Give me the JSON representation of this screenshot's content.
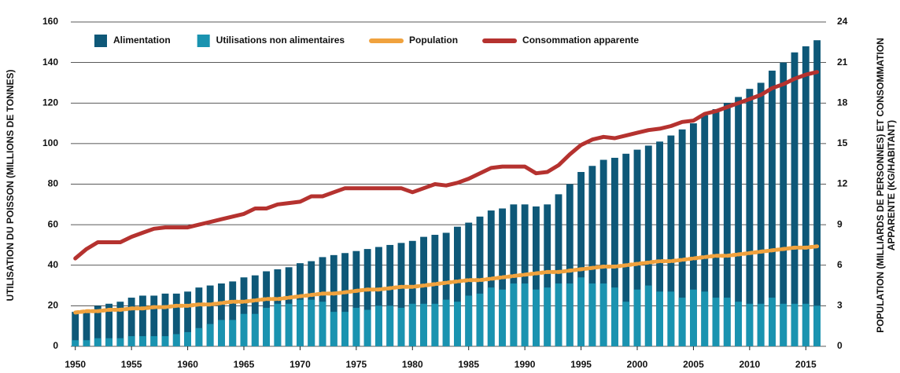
{
  "chart_data": {
    "type": "bar",
    "ylabel": "UTILISATION DU POISSON (MILLIONS DE TONNES)",
    "y2label": [
      "POPULATION (MILLIARDS DE PERSONNES) ET CONSOMMATION",
      "APPARENTE (KG/HABITANT)"
    ],
    "x": [
      1950,
      1951,
      1952,
      1953,
      1954,
      1955,
      1956,
      1957,
      1958,
      1959,
      1960,
      1961,
      1962,
      1963,
      1964,
      1965,
      1966,
      1967,
      1968,
      1969,
      1970,
      1971,
      1972,
      1973,
      1974,
      1975,
      1976,
      1977,
      1978,
      1979,
      1980,
      1981,
      1982,
      1983,
      1984,
      1985,
      1986,
      1987,
      1988,
      1989,
      1990,
      1991,
      1992,
      1993,
      1994,
      1995,
      1996,
      1997,
      1998,
      1999,
      2000,
      2001,
      2002,
      2003,
      2004,
      2005,
      2006,
      2007,
      2008,
      2009,
      2010,
      2011,
      2012,
      2013,
      2014,
      2015,
      2016
    ],
    "xlim": [
      1949.6,
      2016.8
    ],
    "xticks": [
      1950,
      1955,
      1960,
      1965,
      1970,
      1975,
      1980,
      1985,
      1990,
      1995,
      2000,
      2005,
      2010,
      2015
    ],
    "ylim": [
      0,
      160
    ],
    "yticks": [
      0,
      20,
      40,
      60,
      80,
      100,
      120,
      140,
      160
    ],
    "y2lim": [
      0,
      24
    ],
    "y2ticks": [
      0,
      3,
      6,
      9,
      12,
      15,
      18,
      21,
      24
    ],
    "grid": true,
    "legend": "top",
    "series": [
      {
        "name": "Alimentation",
        "type": "bar",
        "color": "#0e5878",
        "values": [
          17,
          18,
          20,
          21,
          22,
          24,
          25,
          25,
          26,
          26,
          27,
          29,
          30,
          31,
          32,
          34,
          35,
          37,
          38,
          39,
          41,
          42,
          44,
          45,
          46,
          47,
          48,
          49,
          50,
          51,
          52,
          54,
          55,
          56,
          59,
          61,
          64,
          67,
          68,
          70,
          70,
          69,
          70,
          75,
          80,
          86,
          89,
          92,
          93,
          95,
          97,
          99,
          101,
          104,
          107,
          110,
          114,
          117,
          120,
          123,
          127,
          130,
          136,
          140,
          145,
          148,
          151
        ]
      },
      {
        "name": "Utilisations non alimentaires",
        "type": "bar",
        "color": "#1a93b0",
        "values": [
          3,
          3,
          4,
          4,
          4,
          5,
          5,
          5,
          5,
          6,
          7,
          9,
          11,
          13,
          13,
          16,
          16,
          19,
          21,
          21,
          23,
          23,
          22,
          17,
          17,
          19,
          18,
          20,
          20,
          19,
          21,
          21,
          21,
          23,
          22,
          25,
          26,
          29,
          28,
          31,
          31,
          28,
          29,
          31,
          31,
          34,
          31,
          31,
          29,
          22,
          28,
          30,
          27,
          27,
          24,
          28,
          27,
          24,
          24,
          22,
          21,
          21,
          24,
          21,
          21,
          21,
          20
        ]
      },
      {
        "name": "Population",
        "type": "line",
        "axis": "y2",
        "color": "#f0a23e",
        "values": [
          2.5,
          2.6,
          2.6,
          2.7,
          2.7,
          2.8,
          2.8,
          2.9,
          2.9,
          3.0,
          3.0,
          3.1,
          3.1,
          3.2,
          3.3,
          3.3,
          3.4,
          3.5,
          3.5,
          3.6,
          3.7,
          3.8,
          3.9,
          3.9,
          4.0,
          4.1,
          4.2,
          4.2,
          4.3,
          4.4,
          4.4,
          4.5,
          4.6,
          4.7,
          4.8,
          4.9,
          4.9,
          5.0,
          5.1,
          5.2,
          5.3,
          5.4,
          5.5,
          5.5,
          5.6,
          5.7,
          5.8,
          5.9,
          5.9,
          6.0,
          6.1,
          6.2,
          6.3,
          6.3,
          6.4,
          6.5,
          6.6,
          6.7,
          6.7,
          6.8,
          6.9,
          7.0,
          7.1,
          7.2,
          7.3,
          7.3,
          7.4
        ]
      },
      {
        "name": "Consommation apparente",
        "type": "line",
        "axis": "y2",
        "color": "#b5322f",
        "values": [
          6.5,
          7.2,
          7.7,
          7.7,
          7.7,
          8.1,
          8.4,
          8.7,
          8.8,
          8.8,
          8.8,
          9.0,
          9.2,
          9.4,
          9.6,
          9.8,
          10.2,
          10.2,
          10.5,
          10.6,
          10.7,
          11.1,
          11.1,
          11.4,
          11.7,
          11.7,
          11.7,
          11.7,
          11.7,
          11.7,
          11.4,
          11.7,
          12.0,
          11.9,
          12.1,
          12.4,
          12.8,
          13.2,
          13.3,
          13.3,
          13.3,
          12.8,
          12.9,
          13.4,
          14.2,
          14.9,
          15.3,
          15.5,
          15.4,
          15.6,
          15.8,
          16.0,
          16.1,
          16.3,
          16.6,
          16.7,
          17.2,
          17.4,
          17.7,
          18.0,
          18.3,
          18.6,
          19.1,
          19.4,
          19.8,
          20.1,
          20.3
        ]
      }
    ]
  }
}
